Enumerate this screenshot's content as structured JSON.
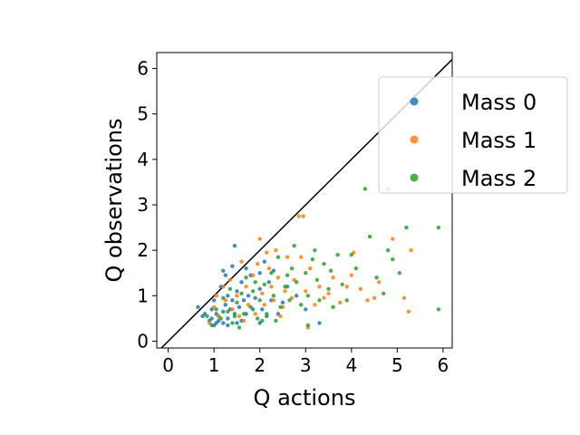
{
  "chart_data": {
    "type": "scatter",
    "xlabel": "Q actions",
    "ylabel": "Q observations",
    "xlim": [
      -0.25,
      6.2
    ],
    "ylim": [
      -0.15,
      6.35
    ],
    "x_ticks": [
      0,
      1,
      2,
      3,
      4,
      5,
      6
    ],
    "y_ticks": [
      0,
      1,
      2,
      3,
      4,
      5,
      6
    ],
    "legend_position": "right, partially outside axes",
    "reference_line": {
      "label": "",
      "x": [
        -0.25,
        6.2
      ],
      "y": [
        -0.25,
        6.2
      ],
      "color": "#000000"
    },
    "series": [
      {
        "name": "Mass 0",
        "color": "#1f77b4",
        "points": [
          [
            0.65,
            0.75
          ],
          [
            0.75,
            0.55
          ],
          [
            0.8,
            0.6
          ],
          [
            0.9,
            0.45
          ],
          [
            0.95,
            0.7
          ],
          [
            1.0,
            0.9
          ],
          [
            1.05,
            0.4
          ],
          [
            1.1,
            0.55
          ],
          [
            1.15,
            1.2
          ],
          [
            1.2,
            0.65
          ],
          [
            1.2,
            1.55
          ],
          [
            1.25,
            0.8
          ],
          [
            1.25,
            1.45
          ],
          [
            1.3,
            0.5
          ],
          [
            1.3,
            1.0
          ],
          [
            1.35,
            0.7
          ],
          [
            1.4,
            0.9
          ],
          [
            1.45,
            0.6
          ],
          [
            1.45,
            2.1
          ],
          [
            1.5,
            1.1
          ],
          [
            1.55,
            0.75
          ],
          [
            1.6,
            0.45
          ],
          [
            1.6,
            1.3
          ],
          [
            1.65,
            0.9
          ],
          [
            1.7,
            0.6
          ],
          [
            1.75,
            1.0
          ],
          [
            1.8,
            1.45
          ],
          [
            1.85,
            0.7
          ],
          [
            1.9,
            0.95
          ],
          [
            2.0,
            0.4
          ],
          [
            2.0,
            1.15
          ],
          [
            2.05,
            0.7
          ],
          [
            2.1,
            1.75
          ],
          [
            2.15,
            0.55
          ],
          [
            2.2,
            1.3
          ],
          [
            2.25,
            0.9
          ],
          [
            2.3,
            1.55
          ],
          [
            2.4,
            0.6
          ],
          [
            2.5,
            0.85
          ],
          [
            2.6,
            1.2
          ],
          [
            2.8,
            1.0
          ],
          [
            3.0,
            0.7
          ],
          [
            3.3,
            0.4
          ],
          [
            1.0,
            0.35
          ],
          [
            1.1,
            0.45
          ],
          [
            1.05,
            0.6
          ],
          [
            1.5,
            0.4
          ],
          [
            1.3,
            0.35
          ],
          [
            0.95,
            0.5
          ],
          [
            1.2,
            0.4
          ],
          [
            1.7,
            1.6
          ],
          [
            2.0,
            1.5
          ],
          [
            1.4,
            1.65
          ]
        ]
      },
      {
        "name": "Mass 1",
        "color": "#ff7f0e",
        "points": [
          [
            0.9,
            0.4
          ],
          [
            1.0,
            0.75
          ],
          [
            1.05,
            1.0
          ],
          [
            1.1,
            0.55
          ],
          [
            1.2,
            1.2
          ],
          [
            1.25,
            0.9
          ],
          [
            1.35,
            1.35
          ],
          [
            1.4,
            0.7
          ],
          [
            1.5,
            1.0
          ],
          [
            1.55,
            0.55
          ],
          [
            1.6,
            1.75
          ],
          [
            1.7,
            1.2
          ],
          [
            1.75,
            0.8
          ],
          [
            1.85,
            1.45
          ],
          [
            1.9,
            0.6
          ],
          [
            2.0,
            2.25
          ],
          [
            2.05,
            1.05
          ],
          [
            2.1,
            0.8
          ],
          [
            2.2,
            1.6
          ],
          [
            2.25,
            1.2
          ],
          [
            2.3,
            0.9
          ],
          [
            2.35,
            2.0
          ],
          [
            2.4,
            1.4
          ],
          [
            2.5,
            0.75
          ],
          [
            2.55,
            1.1
          ],
          [
            2.6,
            1.85
          ],
          [
            2.7,
            0.95
          ],
          [
            2.75,
            1.35
          ],
          [
            2.85,
            2.75
          ],
          [
            2.95,
            2.75
          ],
          [
            3.0,
            1.1
          ],
          [
            3.1,
            1.6
          ],
          [
            3.2,
            0.8
          ],
          [
            3.3,
            1.2
          ],
          [
            3.4,
            0.95
          ],
          [
            3.5,
            1.05
          ],
          [
            3.6,
            1.4
          ],
          [
            3.75,
            0.85
          ],
          [
            3.9,
            1.2
          ],
          [
            4.0,
            1.45
          ],
          [
            4.05,
            1.95
          ],
          [
            4.2,
            1.15
          ],
          [
            4.35,
            0.9
          ],
          [
            4.5,
            0.95
          ],
          [
            4.6,
            1.3
          ],
          [
            4.8,
            3.35
          ],
          [
            4.9,
            2.25
          ],
          [
            5.15,
            0.95
          ],
          [
            5.25,
            0.65
          ],
          [
            5.3,
            2.0
          ],
          [
            1.95,
            1.7
          ],
          [
            2.15,
            1.95
          ],
          [
            2.45,
            0.55
          ],
          [
            1.65,
            0.45
          ],
          [
            3.05,
            0.3
          ],
          [
            2.9,
            1.85
          ]
        ]
      },
      {
        "name": "Mass 2",
        "color": "#2ca02c",
        "points": [
          [
            0.85,
            0.55
          ],
          [
            0.95,
            0.35
          ],
          [
            1.05,
            0.7
          ],
          [
            1.15,
            0.5
          ],
          [
            1.2,
            0.95
          ],
          [
            1.3,
            0.65
          ],
          [
            1.35,
            1.15
          ],
          [
            1.45,
            0.55
          ],
          [
            1.5,
            0.85
          ],
          [
            1.6,
            1.05
          ],
          [
            1.65,
            0.6
          ],
          [
            1.7,
            1.4
          ],
          [
            1.8,
            0.75
          ],
          [
            1.85,
            1.1
          ],
          [
            1.95,
            0.5
          ],
          [
            2.0,
            0.9
          ],
          [
            2.1,
            1.25
          ],
          [
            2.15,
            0.6
          ],
          [
            2.25,
            1.5
          ],
          [
            2.3,
            1.0
          ],
          [
            2.4,
            1.85
          ],
          [
            2.45,
            0.75
          ],
          [
            2.55,
            1.2
          ],
          [
            2.65,
            0.9
          ],
          [
            2.7,
            1.6
          ],
          [
            2.75,
            2.1
          ],
          [
            2.8,
            1.3
          ],
          [
            2.9,
            0.8
          ],
          [
            3.0,
            1.5
          ],
          [
            3.05,
            1.0
          ],
          [
            3.15,
            1.8
          ],
          [
            3.25,
            1.35
          ],
          [
            3.3,
            0.9
          ],
          [
            3.4,
            1.7
          ],
          [
            3.5,
            1.15
          ],
          [
            3.6,
            0.75
          ],
          [
            3.7,
            1.9
          ],
          [
            3.8,
            1.25
          ],
          [
            3.9,
            0.9
          ],
          [
            4.1,
            1.6
          ],
          [
            4.3,
            3.35
          ],
          [
            4.4,
            2.3
          ],
          [
            4.55,
            1.4
          ],
          [
            4.7,
            1.05
          ],
          [
            4.8,
            2.0
          ],
          [
            4.9,
            1.8
          ],
          [
            5.05,
            1.5
          ],
          [
            5.2,
            2.5
          ],
          [
            5.9,
            2.5
          ],
          [
            5.9,
            0.7
          ],
          [
            3.05,
            0.35
          ],
          [
            2.35,
            0.45
          ],
          [
            1.4,
            0.4
          ],
          [
            2.6,
            1.45
          ],
          [
            3.2,
            2.0
          ],
          [
            1.9,
            1.3
          ],
          [
            2.05,
            0.45
          ],
          [
            4.0,
            1.9
          ],
          [
            3.55,
            1.55
          ],
          [
            1.55,
            0.3
          ]
        ]
      }
    ]
  }
}
